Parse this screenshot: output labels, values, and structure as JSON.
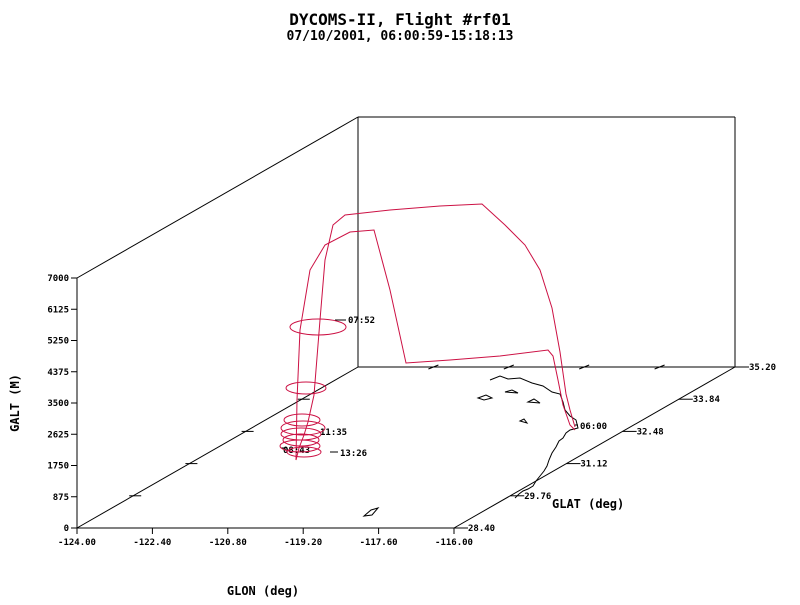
{
  "title": "DYCOMS-II, Flight #rf01",
  "subtitle": "07/10/2001, 06:00:59-15:18:13",
  "chart_data": {
    "type": "line",
    "projection": "3d",
    "xlabel": "GLON (deg)",
    "ylabel": "GLAT (deg)",
    "zlabel": "GALT (M)",
    "xlim": [
      -124.0,
      -116.0
    ],
    "ylim": [
      28.4,
      35.2
    ],
    "zlim": [
      0,
      7000
    ],
    "x_ticks": [
      "-124.00",
      "-122.40",
      "-120.80",
      "-119.20",
      "-117.60",
      "-116.00"
    ],
    "y_ticks": [
      "28.40",
      "29.76",
      "31.12",
      "32.48",
      "33.84",
      "35.20"
    ],
    "z_ticks": [
      "0",
      "875",
      "1750",
      "2625",
      "3500",
      "4375",
      "5250",
      "6125",
      "7000"
    ],
    "series_color": "#cc1144",
    "coast_color": "#000000",
    "time_labels": [
      "07:52",
      "11:35",
      "13:26",
      "08:43",
      "06:00"
    ]
  }
}
